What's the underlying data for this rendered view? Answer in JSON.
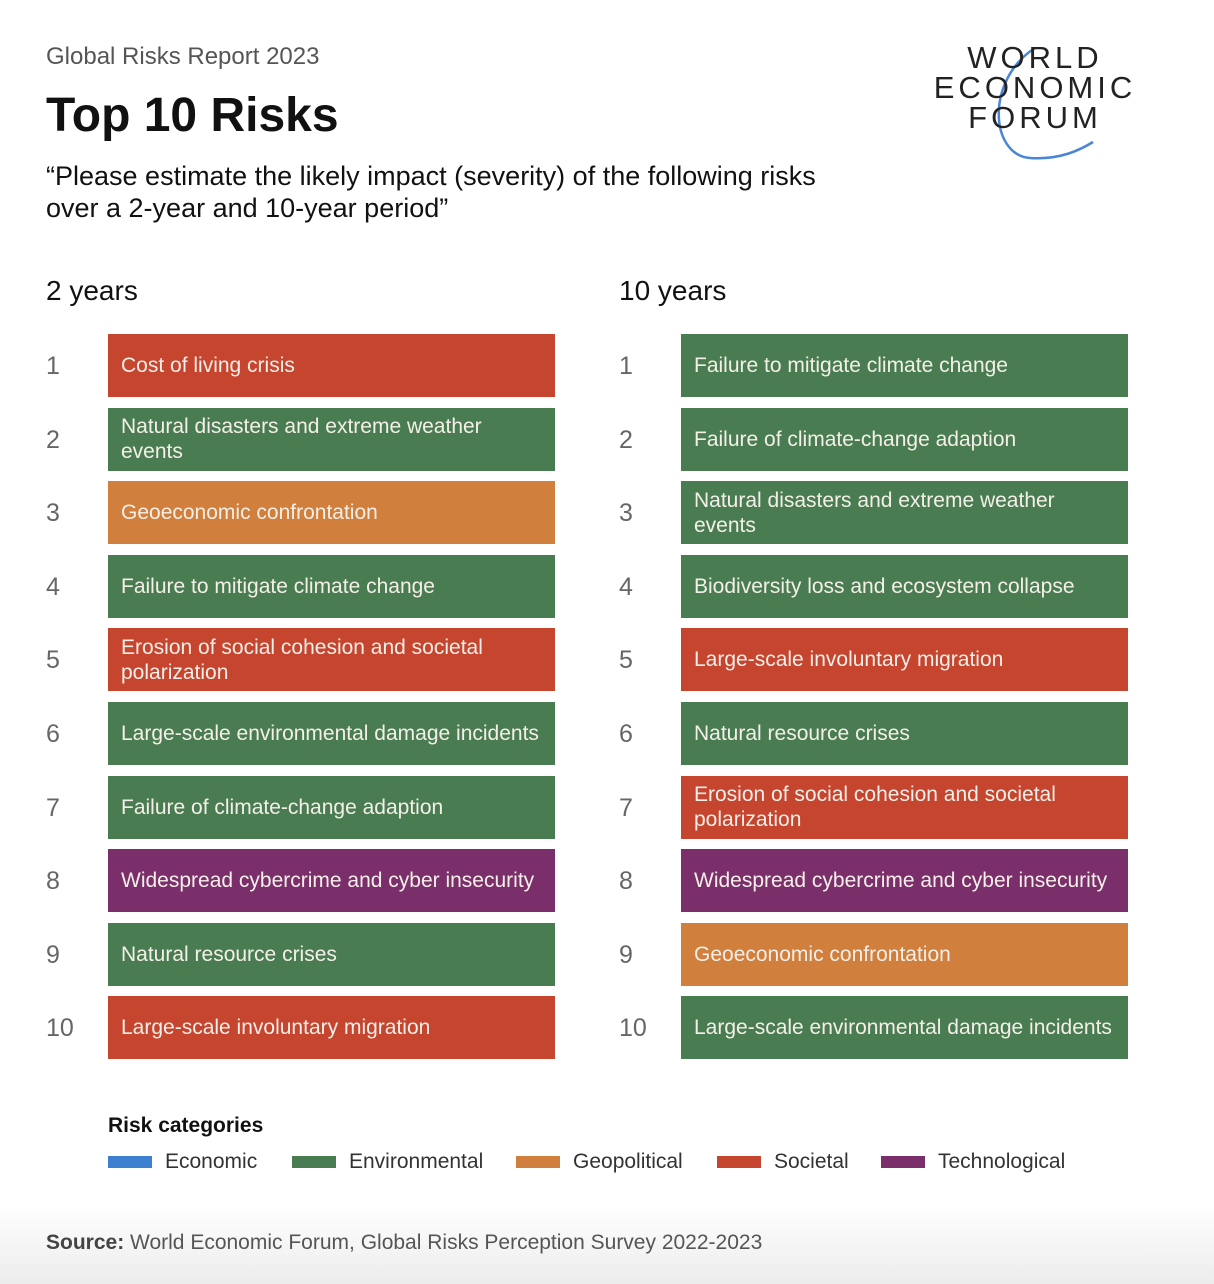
{
  "header": {
    "subtitle": "Global Risks Report 2023",
    "title": "Top 10 Risks",
    "question": "“Please estimate the likely impact (severity) of the following risks over a 2-year and 10-year period”"
  },
  "logo": {
    "lines": [
      "WORLD",
      "ECONOMIC",
      "FORUM"
    ]
  },
  "colors": {
    "Economic": "#3d7fd1",
    "Environmental": "#4a7c52",
    "Geopolitical": "#d07f3c",
    "Societal": "#c5452f",
    "Technological": "#7a2f6b"
  },
  "columns": [
    {
      "heading": "2 years",
      "items": [
        {
          "rank": "1",
          "label": "Cost of living crisis",
          "category": "Societal"
        },
        {
          "rank": "2",
          "label": "Natural disasters and extreme weather events",
          "category": "Environmental"
        },
        {
          "rank": "3",
          "label": "Geoeconomic confrontation",
          "category": "Geopolitical"
        },
        {
          "rank": "4",
          "label": "Failure to mitigate climate change",
          "category": "Environmental"
        },
        {
          "rank": "5",
          "label": "Erosion of social cohesion and societal polarization",
          "category": "Societal"
        },
        {
          "rank": "6",
          "label": "Large-scale environmental damage incidents",
          "category": "Environmental"
        },
        {
          "rank": "7",
          "label": "Failure of climate-change adaption",
          "category": "Environmental"
        },
        {
          "rank": "8",
          "label": "Widespread cybercrime and cyber insecurity",
          "category": "Technological"
        },
        {
          "rank": "9",
          "label": "Natural resource crises",
          "category": "Environmental"
        },
        {
          "rank": "10",
          "label": "Large-scale involuntary migration",
          "category": "Societal"
        }
      ]
    },
    {
      "heading": "10 years",
      "items": [
        {
          "rank": "1",
          "label": "Failure to mitigate climate change",
          "category": "Environmental"
        },
        {
          "rank": "2",
          "label": "Failure of climate-change adaption",
          "category": "Environmental"
        },
        {
          "rank": "3",
          "label": "Natural disasters and extreme weather events",
          "category": "Environmental"
        },
        {
          "rank": "4",
          "label": "Biodiversity loss and ecosystem collapse",
          "category": "Environmental"
        },
        {
          "rank": "5",
          "label": "Large-scale involuntary migration",
          "category": "Societal"
        },
        {
          "rank": "6",
          "label": "Natural resource crises",
          "category": "Environmental"
        },
        {
          "rank": "7",
          "label": "Erosion of social cohesion and societal polarization",
          "category": "Societal"
        },
        {
          "rank": "8",
          "label": "Widespread cybercrime and cyber insecurity",
          "category": "Technological"
        },
        {
          "rank": "9",
          "label": "Geoeconomic confrontation",
          "category": "Geopolitical"
        },
        {
          "rank": "10",
          "label": "Large-scale environmental damage incidents",
          "category": "Environmental"
        }
      ]
    }
  ],
  "legend": {
    "title": "Risk categories",
    "items": [
      "Economic",
      "Environmental",
      "Geopolitical",
      "Societal",
      "Technological"
    ]
  },
  "source": {
    "label": "Source:",
    "text": " World Economic Forum, Global Risks Perception Survey 2022-2023"
  }
}
